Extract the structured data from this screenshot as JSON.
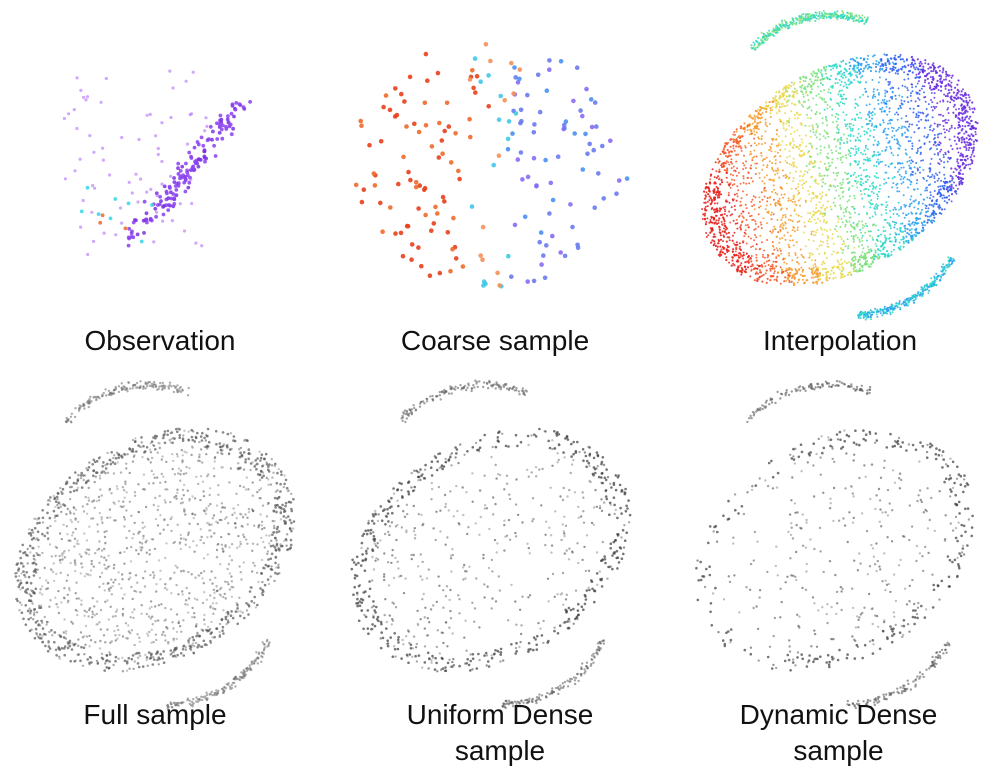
{
  "figure": {
    "panels": [
      {
        "id": "observation",
        "caption": "Observation",
        "style": "colored-sparse",
        "palette": [
          "#8a3ff0",
          "#9a55f2",
          "#7a30e0",
          "#40d8e8",
          "#f07030",
          "#b070f8"
        ]
      },
      {
        "id": "coarse",
        "caption": "Coarse sample",
        "style": "colored-coarse",
        "palette": [
          "#e8401c",
          "#f06a2a",
          "#f4905a",
          "#6a7af0",
          "#8a6af4",
          "#40c8e8",
          "#4a90f0"
        ]
      },
      {
        "id": "interpolation",
        "caption": "Interpolation",
        "style": "colored-dense",
        "palette": [
          "#e8201c",
          "#f45a2a",
          "#f49a2a",
          "#e8d84a",
          "#7ae07a",
          "#2ad8c8",
          "#2aa0f0",
          "#3060f0",
          "#6a30e0"
        ]
      },
      {
        "id": "full",
        "caption": "Full sample",
        "style": "gray-full",
        "palette": [
          "#555555",
          "#777777",
          "#999999"
        ]
      },
      {
        "id": "uniform",
        "caption_lines": [
          "Uniform Dense",
          "sample"
        ],
        "style": "gray-uniform",
        "palette": [
          "#3a3a3a",
          "#666666",
          "#8a8a8a"
        ]
      },
      {
        "id": "dynamic",
        "caption_lines": [
          "Dynamic Dense",
          "sample"
        ],
        "style": "gray-dynamic",
        "palette": [
          "#3a3a3a",
          "#5a5a5a",
          "#8a8a8a"
        ]
      }
    ]
  }
}
